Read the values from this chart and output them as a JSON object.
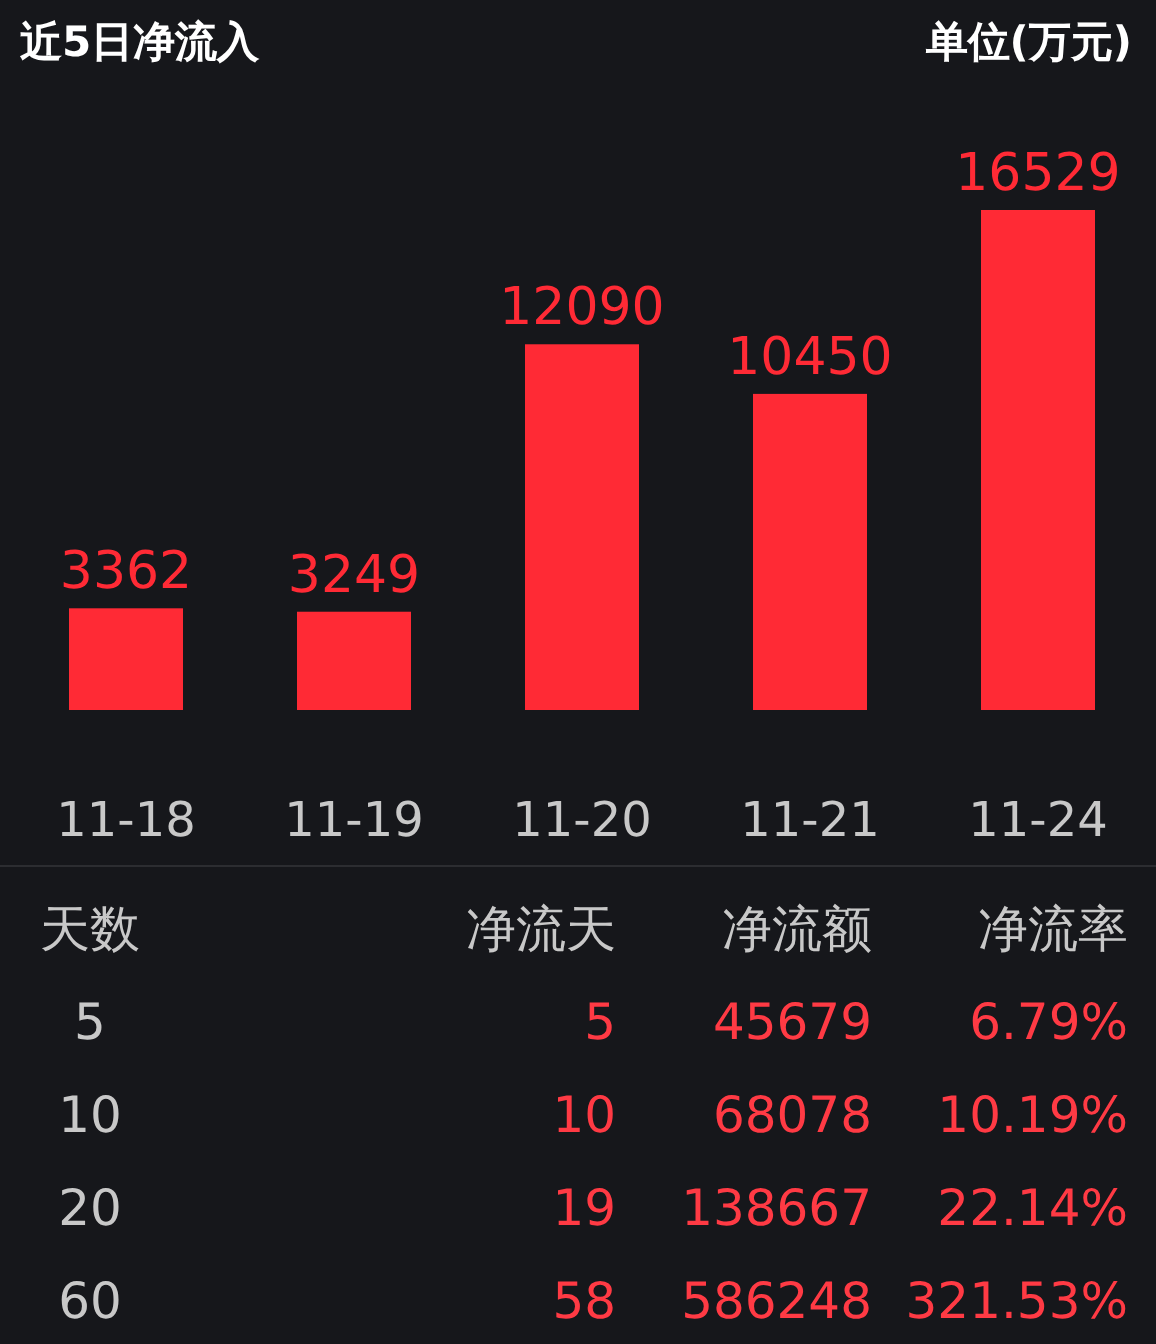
{
  "chart_data": [
    {
      "type": "bar",
      "title": "近5日净流入",
      "subtitle": "单位(万元)",
      "categories": [
        "11-18",
        "11-19",
        "11-20",
        "11-21",
        "11-24"
      ],
      "values": [
        3362,
        3249,
        12090,
        10450,
        16529
      ],
      "color": "#ff2a35",
      "data_labels": true
    },
    {
      "type": "other",
      "annotations": [
        "天数",
        "净流天",
        "净流额",
        "净流率",
        "5",
        "5",
        "45679",
        "6.79%",
        "10",
        "10",
        "68078",
        "10.19%",
        "20",
        "19",
        "138667",
        "22.14%",
        "60",
        "58",
        "586248",
        "321.53%"
      ]
    }
  ]
}
